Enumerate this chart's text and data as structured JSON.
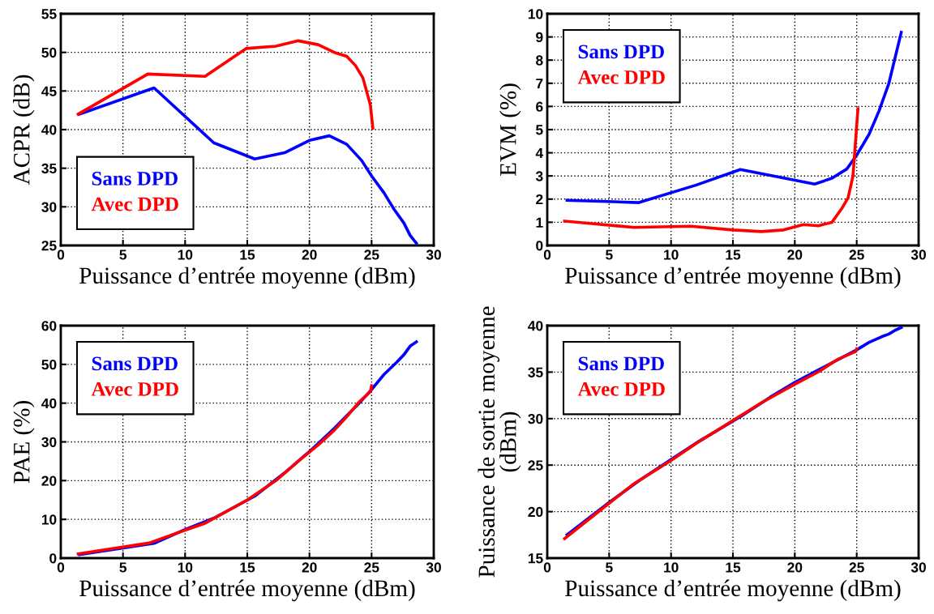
{
  "chart_data": [
    {
      "type": "line",
      "xlabel": "Puissance d’entrée moyenne (dBm)",
      "ylabel": "ACPR (dB)",
      "xlim": [
        0,
        30
      ],
      "xticks": [
        0,
        5,
        10,
        15,
        20,
        25,
        30
      ],
      "ylim": [
        25,
        55
      ],
      "yticks": [
        25,
        30,
        35,
        40,
        45,
        50,
        55
      ],
      "grid": true,
      "legend": "bottom left",
      "series": [
        {
          "name": "Sans DPD",
          "color": "#0000ff",
          "x": [
            1.5,
            7.5,
            12.3,
            15.6,
            18,
            20,
            21.6,
            23,
            24.2,
            25,
            26,
            26.8,
            27.6,
            28.1,
            28.6
          ],
          "values": [
            42,
            45.4,
            38.3,
            36.2,
            37,
            38.6,
            39.2,
            38.1,
            36,
            34,
            31.8,
            29.7,
            27.9,
            26.3,
            25.3
          ]
        },
        {
          "name": "Avec DPD",
          "color": "#ff0000",
          "x": [
            1.4,
            7,
            11.6,
            14.9,
            17.3,
            19.1,
            20.7,
            22,
            23,
            23.7,
            24.3,
            24.9,
            25.1
          ],
          "values": [
            42,
            47.2,
            46.9,
            50.5,
            50.8,
            51.5,
            51,
            50,
            49.5,
            48.3,
            46.7,
            43.2,
            40.2
          ]
        }
      ]
    },
    {
      "type": "line",
      "xlabel": "Puissance d’entrée moyenne (dBm)",
      "ylabel": "EVM (%)",
      "xlim": [
        0,
        30
      ],
      "xticks": [
        0,
        5,
        10,
        15,
        20,
        25,
        30
      ],
      "ylim": [
        0,
        10
      ],
      "yticks": [
        0,
        1,
        2,
        3,
        4,
        5,
        6,
        7,
        8,
        9,
        10
      ],
      "grid": true,
      "legend": "top left",
      "series": [
        {
          "name": "Sans DPD",
          "color": "#0000ff",
          "x": [
            1.6,
            7.4,
            12,
            15.6,
            21.6,
            23,
            24.2,
            25,
            26,
            26.8,
            27.6,
            28.6
          ],
          "values": [
            1.95,
            1.85,
            2.6,
            3.28,
            2.65,
            2.9,
            3.3,
            3.9,
            4.8,
            5.8,
            7.0,
            9.2
          ]
        },
        {
          "name": "Avec DPD",
          "color": "#ff0000",
          "x": [
            1.4,
            7,
            11.6,
            15,
            17.3,
            19.1,
            20.7,
            21.9,
            23,
            23.8,
            24.3,
            24.7,
            25.1
          ],
          "values": [
            1.05,
            0.78,
            0.83,
            0.67,
            0.6,
            0.67,
            0.9,
            0.85,
            1.0,
            1.6,
            2.05,
            3.0,
            5.9
          ]
        }
      ]
    },
    {
      "type": "line",
      "xlabel": "Puissance d’entrée moyenne (dBm)",
      "ylabel": "PAE (%)",
      "xlim": [
        0,
        30
      ],
      "xticks": [
        0,
        5,
        10,
        15,
        20,
        25,
        30
      ],
      "ylim": [
        0,
        60
      ],
      "yticks": [
        0,
        10,
        20,
        30,
        40,
        50,
        60
      ],
      "grid": true,
      "legend": "top left",
      "series": [
        {
          "name": "Sans DPD",
          "color": "#0000ff",
          "x": [
            1.5,
            7.5,
            10,
            12.3,
            15.6,
            18,
            20,
            22,
            24,
            25,
            26,
            27,
            27.6,
            28.1,
            28.6
          ],
          "values": [
            0.9,
            3.8,
            7.4,
            10.3,
            16,
            22,
            27.5,
            33.5,
            40,
            43.5,
            47.4,
            50.5,
            52.5,
            54.7,
            55.8
          ]
        },
        {
          "name": "Avec DPD",
          "color": "#ff0000",
          "x": [
            1.4,
            7.1,
            10,
            11.6,
            15,
            17.3,
            19.1,
            20.7,
            22,
            23,
            24,
            24.9,
            25
          ],
          "values": [
            1.1,
            3.9,
            7.2,
            9,
            15,
            20,
            25,
            29.2,
            33,
            36.5,
            40.3,
            43,
            44.5
          ]
        }
      ]
    },
    {
      "type": "line",
      "xlabel": "Puissance d’entrée moyenne (dBm)",
      "ylabel": "Puissance de sortie moyenne\n(dBm)",
      "xlim": [
        0,
        30
      ],
      "xticks": [
        0,
        5,
        10,
        15,
        20,
        25,
        30
      ],
      "ylim": [
        15,
        40
      ],
      "yticks": [
        15,
        20,
        25,
        30,
        35,
        40
      ],
      "grid": true,
      "legend": "top left",
      "series": [
        {
          "name": "Sans DPD",
          "color": "#0000ff",
          "x": [
            1.6,
            5,
            7.5,
            10,
            12.3,
            15.6,
            18,
            20,
            22,
            24,
            25,
            26,
            27,
            27.6,
            28.1,
            28.6
          ],
          "values": [
            17.5,
            21,
            23.4,
            25.6,
            27.6,
            30.2,
            32.3,
            33.9,
            35.3,
            36.7,
            37.4,
            38.2,
            38.8,
            39.1,
            39.5,
            39.8
          ]
        },
        {
          "name": "Avec DPD",
          "color": "#ff0000",
          "x": [
            1.4,
            5,
            7,
            10,
            12,
            15,
            17.3,
            20,
            22,
            23.5,
            24.9,
            25
          ],
          "values": [
            17.1,
            20.9,
            23,
            25.5,
            27.3,
            29.8,
            31.7,
            33.7,
            35.1,
            36.4,
            37.2,
            37.5
          ]
        }
      ]
    }
  ]
}
